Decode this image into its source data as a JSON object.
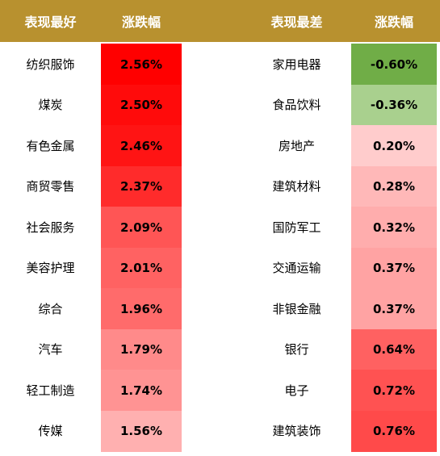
{
  "header": [
    "表现最好",
    "涨跌幅",
    "表现最差",
    "涨跌幅"
  ],
  "header_color": "#b8912f",
  "best": [
    {
      "name": "纺织服饰",
      "change": "2.56%",
      "color": "#ff0000"
    },
    {
      "name": "煤炭",
      "change": "2.50%",
      "color": "#ff0b0b"
    },
    {
      "name": "有色金属",
      "change": "2.46%",
      "color": "#ff1414"
    },
    {
      "name": "商贸零售",
      "change": "2.37%",
      "color": "#ff2b2b"
    },
    {
      "name": "社会服务",
      "change": "2.09%",
      "color": "#ff5555"
    },
    {
      "name": "美容护理",
      "change": "2.01%",
      "color": "#ff6262"
    },
    {
      "name": "综合",
      "change": "1.96%",
      "color": "#ff6b6b"
    },
    {
      "name": "汽车",
      "change": "1.79%",
      "color": "#ff8a8a"
    },
    {
      "name": "轻工制造",
      "change": "1.74%",
      "color": "#ff9393"
    },
    {
      "name": "传媒",
      "change": "1.56%",
      "color": "#ffb0b0"
    }
  ],
  "worst": [
    {
      "name": "家用电器",
      "change": "-0.60%",
      "color": "#70ad47"
    },
    {
      "name": "食品饮料",
      "change": "-0.36%",
      "color": "#a9d08e"
    },
    {
      "name": "房地产",
      "change": "0.20%",
      "color": "#ffcccc"
    },
    {
      "name": "建筑材料",
      "change": "0.28%",
      "color": "#ffb8b8"
    },
    {
      "name": "国防军工",
      "change": "0.32%",
      "color": "#ffadad"
    },
    {
      "name": "交通运输",
      "change": "0.37%",
      "color": "#ffa3a3"
    },
    {
      "name": "非银金融",
      "change": "0.37%",
      "color": "#ffa3a3"
    },
    {
      "name": "银行",
      "change": "0.64%",
      "color": "#ff6161"
    },
    {
      "name": "电子",
      "change": "0.72%",
      "color": "#ff5252"
    },
    {
      "name": "建筑装饰",
      "change": "0.76%",
      "color": "#ff4a4a"
    }
  ]
}
